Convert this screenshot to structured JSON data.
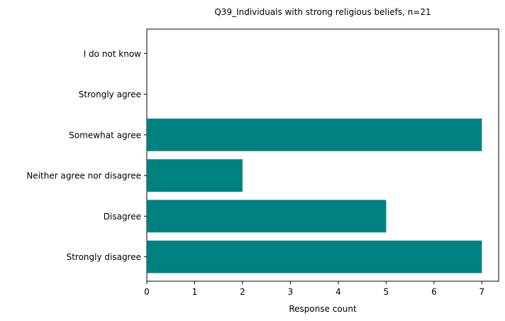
{
  "chart_data": {
    "type": "bar",
    "orientation": "horizontal",
    "title": "Q39_Individuals with strong religious beliefs, n=21",
    "xlabel": "Response count",
    "ylabel": "",
    "categories": [
      "Strongly disagree",
      "Disagree",
      "Neither agree nor disagree",
      "Somewhat agree",
      "Strongly agree",
      "I do not know"
    ],
    "values": [
      7,
      5,
      2,
      7,
      0,
      0
    ],
    "xlim": [
      0,
      7.35
    ],
    "xticks": [
      "0",
      "1",
      "2",
      "3",
      "4",
      "5",
      "6",
      "7"
    ],
    "bar_color": "#008080",
    "grid": false,
    "legend": "none"
  }
}
